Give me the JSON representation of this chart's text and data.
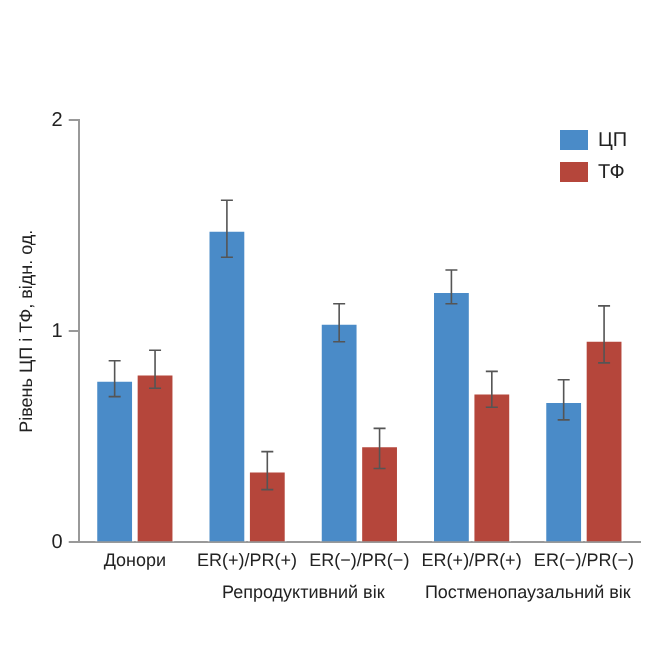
{
  "chart_data": {
    "type": "bar",
    "ylabel": "Рівень ЦП і ТФ, відн. од.",
    "categories": [
      "Донори",
      "ER(+)/PR(+)",
      "ER(−)/PR(−)",
      "ER(+)/PR(+)",
      "ER(−)/PR(−)"
    ],
    "series": [
      {
        "name": "ЦП",
        "color": "#4a8bc8",
        "values": [
          0.77,
          1.48,
          1.04,
          1.19,
          0.67
        ],
        "errors": [
          [
            0.69,
            0.86
          ],
          [
            1.35,
            1.62
          ],
          [
            0.95,
            1.13
          ],
          [
            1.13,
            1.29
          ],
          [
            0.58,
            0.77
          ]
        ]
      },
      {
        "name": "ТФ",
        "color": "#b5463b",
        "values": [
          0.8,
          0.34,
          0.46,
          0.71,
          0.96
        ],
        "errors": [
          [
            0.73,
            0.91
          ],
          [
            0.25,
            0.43
          ],
          [
            0.35,
            0.54
          ],
          [
            0.64,
            0.81
          ],
          [
            0.85,
            1.12
          ]
        ]
      }
    ],
    "annotations": [
      "Репродуктивний вік",
      "Постменопаузальний вік"
    ],
    "ylim": [
      0,
      2
    ],
    "yticks": [
      0,
      1,
      2
    ],
    "grid": false,
    "legend": "top right"
  }
}
